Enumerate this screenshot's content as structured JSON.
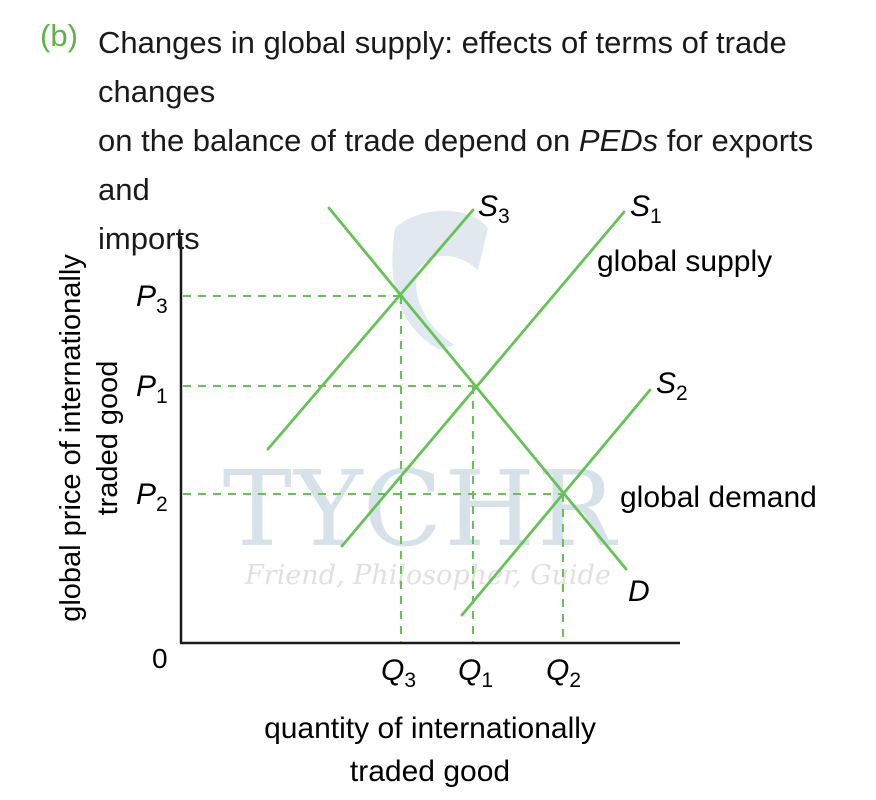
{
  "caption": {
    "label": "(b)",
    "line1": "Changes in global supply: effects of terms of trade changes",
    "line2_pre": "on the balance of trade depend on ",
    "line2_em": "PEDs",
    "line2_post": " for exports and",
    "line3": "imports"
  },
  "axes": {
    "y_label_line1": "global price of internationally",
    "y_label_line2": "traded good",
    "x_label_line1": "quantity of internationally",
    "x_label_line2": "traded good",
    "origin": "0"
  },
  "price_levels": [
    {
      "letter": "P",
      "sub": "3"
    },
    {
      "letter": "P",
      "sub": "1"
    },
    {
      "letter": "P",
      "sub": "2"
    }
  ],
  "quantity_levels": [
    {
      "letter": "Q",
      "sub": "3"
    },
    {
      "letter": "Q",
      "sub": "1"
    },
    {
      "letter": "Q",
      "sub": "2"
    }
  ],
  "curves": {
    "s3": {
      "letter": "S",
      "sub": "3"
    },
    "s1": {
      "letter": "S",
      "sub": "1",
      "desc": "global supply"
    },
    "s2": {
      "letter": "S",
      "sub": "2"
    },
    "d": {
      "letter": "D",
      "desc": "global demand"
    }
  },
  "watermark": {
    "title": "TYCHR",
    "tagline": "Friend, Philosopher, Guide"
  },
  "colors": {
    "curve": "#66c157",
    "guide": "#66c157",
    "caption_label": "#62b04a",
    "watermark": "#b8c9d8"
  }
}
